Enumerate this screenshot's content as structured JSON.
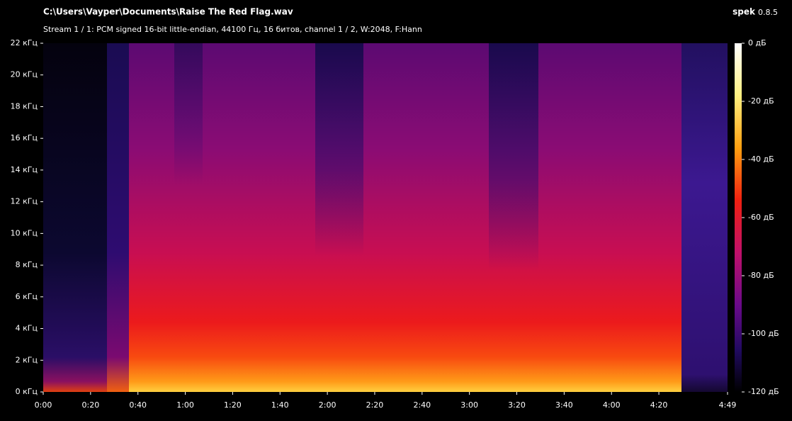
{
  "chart_data": {
    "type": "spectrogram",
    "app_name": "spek",
    "app_version": "0.8.5",
    "title": "C:\\Users\\Vayper\\Documents\\Raise The Red Flag.wav",
    "subtitle": "Stream 1 / 1: PCM signed 16-bit little-endian, 44100 Гц, 16 битов, channel 1 / 2, W:2048, F:Hann",
    "xlim": [
      0,
      289
    ],
    "xticks": [
      {
        "value": 0,
        "label": "0:00"
      },
      {
        "value": 20,
        "label": "0:20"
      },
      {
        "value": 40,
        "label": "0:40"
      },
      {
        "value": 60,
        "label": "1:00"
      },
      {
        "value": 80,
        "label": "1:20"
      },
      {
        "value": 100,
        "label": "1:40"
      },
      {
        "value": 120,
        "label": "2:00"
      },
      {
        "value": 140,
        "label": "2:20"
      },
      {
        "value": 160,
        "label": "2:40"
      },
      {
        "value": 180,
        "label": "3:00"
      },
      {
        "value": 200,
        "label": "3:20"
      },
      {
        "value": 220,
        "label": "3:40"
      },
      {
        "value": 240,
        "label": "4:00"
      },
      {
        "value": 260,
        "label": "4:20"
      },
      {
        "value": 289,
        "label": "4:49"
      }
    ],
    "ylim": [
      0,
      22
    ],
    "yticks": [
      {
        "value": 0,
        "label": "0 кГц"
      },
      {
        "value": 2,
        "label": "2 кГц"
      },
      {
        "value": 4,
        "label": "4 кГц"
      },
      {
        "value": 6,
        "label": "6 кГц"
      },
      {
        "value": 8,
        "label": "8 кГц"
      },
      {
        "value": 10,
        "label": "10 кГц"
      },
      {
        "value": 12,
        "label": "12 кГц"
      },
      {
        "value": 14,
        "label": "14 кГц"
      },
      {
        "value": 16,
        "label": "16 кГц"
      },
      {
        "value": 18,
        "label": "18 кГц"
      },
      {
        "value": 20,
        "label": "20 кГц"
      },
      {
        "value": 22,
        "label": "22 кГц"
      }
    ],
    "colorbar": {
      "ylim": [
        -120,
        0
      ],
      "yticks": [
        {
          "value": 0,
          "label": "0 дБ"
        },
        {
          "value": -20,
          "label": "-20 дБ"
        },
        {
          "value": -40,
          "label": "-40 дБ"
        },
        {
          "value": -60,
          "label": "-60 дБ"
        },
        {
          "value": -80,
          "label": "-80 дБ"
        },
        {
          "value": -100,
          "label": "-100 дБ"
        },
        {
          "value": -120,
          "label": "-120 дБ"
        }
      ]
    }
  }
}
